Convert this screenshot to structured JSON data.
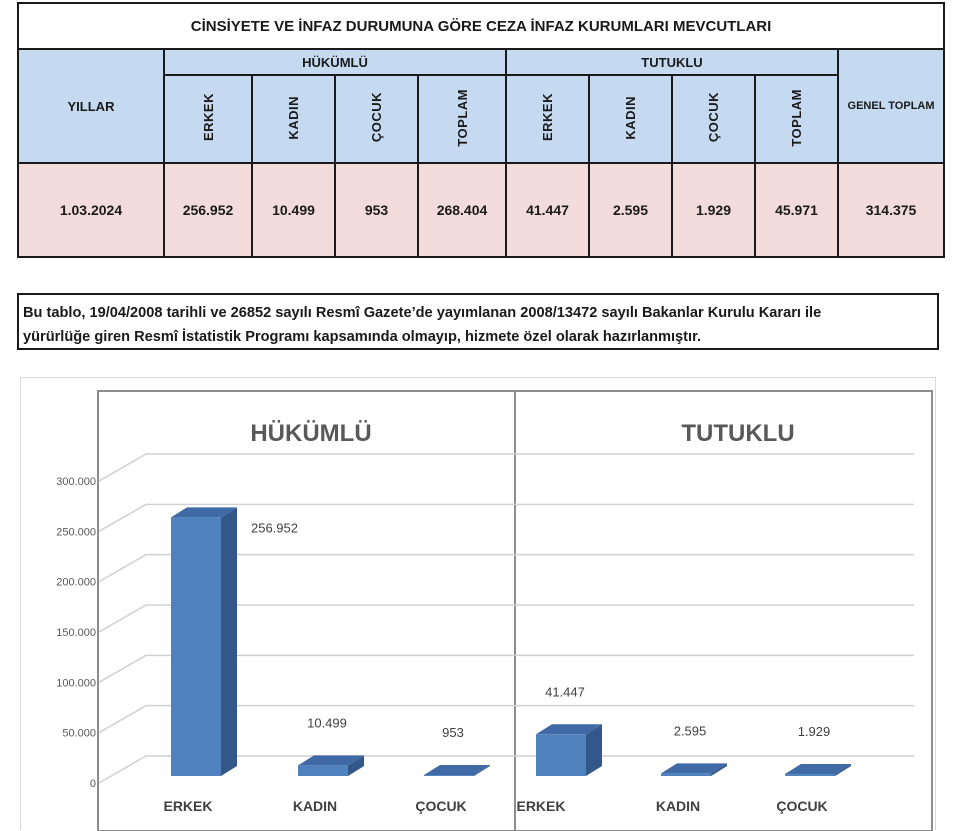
{
  "table": {
    "title": "CİNSİYETE VE İNFAZ DURUMUNA GÖRE CEZA İNFAZ KURUMLARI MEVCUTLARI",
    "years_label": "YILLAR",
    "hukumlu_label": "HÜKÜMLÜ",
    "tutuklu_label": "TUTUKLU",
    "genel_toplam_label": "GENEL TOPLAM",
    "sub_headers": [
      "ERKEK",
      "KADIN",
      "ÇOCUK",
      "TOPLAM",
      "ERKEK",
      "KADIN",
      "ÇOCUK",
      "TOPLAM"
    ],
    "row": {
      "date": "1.03.2024",
      "values": [
        "256.952",
        "10.499",
        "953",
        "268.404",
        "41.447",
        "2.595",
        "1.929",
        "45.971"
      ],
      "genel_toplam": "314.375"
    }
  },
  "note": {
    "line1": "Bu tablo, 19/04/2008 tarihli ve 26852 sayılı Resmî Gazete’de yayımlanan 2008/13472 sayılı Bakanlar Kurulu Kararı ile",
    "line2": "yürürlüğe giren Resmî İstatistik Programı kapsamında olmayıp, hizmete özel olarak hazırlanmıştır."
  },
  "chart_data": {
    "type": "bar",
    "style": "3d-column",
    "ylim": [
      0,
      300000
    ],
    "yticks": [
      0,
      50000,
      100000,
      150000,
      200000,
      250000,
      300000
    ],
    "ytick_labels": [
      "0",
      "50.000",
      "100.000",
      "150.000",
      "200.000",
      "250.000",
      "300.000"
    ],
    "grid": true,
    "bar_color": "#4f81bd",
    "panels": [
      {
        "title": "HÜKÜMLÜ",
        "categories": [
          "ERKEK",
          "KADIN",
          "ÇOCUK"
        ],
        "values": [
          256952,
          10499,
          953
        ],
        "value_labels": [
          "256.952",
          "10.499",
          "953"
        ]
      },
      {
        "title": "TUTUKLU",
        "categories": [
          "ERKEK",
          "KADIN",
          "ÇOCUK"
        ],
        "values": [
          41447,
          2595,
          1929
        ],
        "value_labels": [
          "41.447",
          "2.595",
          "1.929"
        ]
      }
    ]
  }
}
